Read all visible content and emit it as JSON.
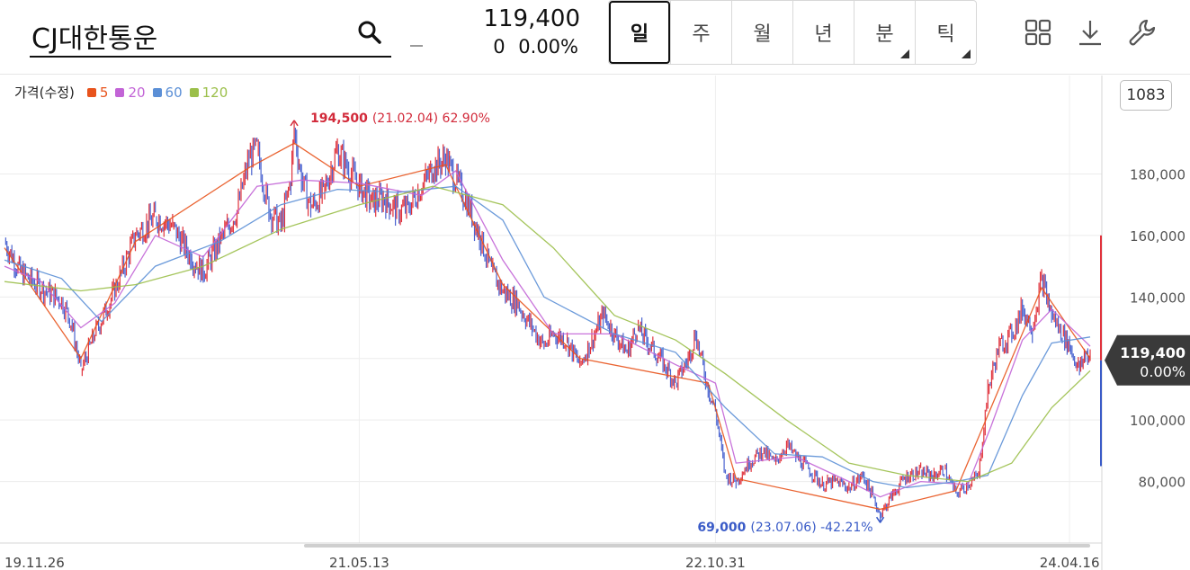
{
  "header": {
    "stock_name": "CJ대한통운",
    "price": "119,400",
    "change_value": "0",
    "change_percent": "0.00%"
  },
  "periods": [
    {
      "label": "일",
      "active": true,
      "has_submenu": false
    },
    {
      "label": "주",
      "active": false,
      "has_submenu": false
    },
    {
      "label": "월",
      "active": false,
      "has_submenu": false
    },
    {
      "label": "년",
      "active": false,
      "has_submenu": false
    },
    {
      "label": "분",
      "active": false,
      "has_submenu": true
    },
    {
      "label": "틱",
      "active": false,
      "has_submenu": true
    }
  ],
  "tools": [
    "grid-layout-icon",
    "download-icon",
    "wrench-icon"
  ],
  "legend": {
    "title": "가격(수정)",
    "items": [
      {
        "label": "5",
        "color": "#e8531c"
      },
      {
        "label": "20",
        "color": "#c264d6"
      },
      {
        "label": "60",
        "color": "#5b8fd6"
      },
      {
        "label": "120",
        "color": "#9bbf4a"
      }
    ]
  },
  "zoom_count": "1083",
  "chart_data": {
    "type": "line",
    "title": "",
    "x_labels": [
      "19.11.26",
      "21.05.13",
      "22.10.31",
      "24.04.16"
    ],
    "x_range": [
      "2019-11-26",
      "2024-05-17"
    ],
    "ylim": [
      60000,
      212000
    ],
    "y_ticks": [
      {
        "value": 80000,
        "label": "80,000"
      },
      {
        "value": 100000,
        "label": "100,000"
      },
      {
        "value": 120000,
        "label": "120,000"
      },
      {
        "value": 140000,
        "label": "140,000"
      },
      {
        "value": 160000,
        "label": "160,000"
      },
      {
        "value": 180000,
        "label": "180,000"
      }
    ],
    "price_series": {
      "name": "가격(수정)",
      "up_color": "#e0323c",
      "down_color": "#4a63d0",
      "points": [
        [
          "2019-11-26",
          158000
        ],
        [
          "2019-12-20",
          148000
        ],
        [
          "2020-01-20",
          143000
        ],
        [
          "2020-02-20",
          139000
        ],
        [
          "2020-03-05",
          132000
        ],
        [
          "2020-03-20",
          116000
        ],
        [
          "2020-04-10",
          128000
        ],
        [
          "2020-05-10",
          142000
        ],
        [
          "2020-06-10",
          160000
        ],
        [
          "2020-07-10",
          166000
        ],
        [
          "2020-08-05",
          163000
        ],
        [
          "2020-09-01",
          153000
        ],
        [
          "2020-09-20",
          148000
        ],
        [
          "2020-10-15",
          158000
        ],
        [
          "2020-11-10",
          168000
        ],
        [
          "2020-11-28",
          185000
        ],
        [
          "2020-12-10",
          188000
        ],
        [
          "2020-12-28",
          168000
        ],
        [
          "2021-01-15",
          163000
        ],
        [
          "2021-01-30",
          178000
        ],
        [
          "2021-02-04",
          194500
        ],
        [
          "2021-02-15",
          178000
        ],
        [
          "2021-03-01",
          169000
        ],
        [
          "2021-03-20",
          174000
        ],
        [
          "2021-04-10",
          188000
        ],
        [
          "2021-04-25",
          182000
        ],
        [
          "2021-05-13",
          176000
        ],
        [
          "2021-06-01",
          171000
        ],
        [
          "2021-06-20",
          172000
        ],
        [
          "2021-07-10",
          168000
        ],
        [
          "2021-07-25",
          169000
        ],
        [
          "2021-08-15",
          176000
        ],
        [
          "2021-09-01",
          182000
        ],
        [
          "2021-09-20",
          185000
        ],
        [
          "2021-10-05",
          178000
        ],
        [
          "2021-10-20",
          172000
        ],
        [
          "2021-11-10",
          160000
        ],
        [
          "2021-11-28",
          148000
        ],
        [
          "2021-12-15",
          142000
        ],
        [
          "2022-01-05",
          138000
        ],
        [
          "2022-01-28",
          130000
        ],
        [
          "2022-02-15",
          124000
        ],
        [
          "2022-03-01",
          128000
        ],
        [
          "2022-03-20",
          126000
        ],
        [
          "2022-04-10",
          118000
        ],
        [
          "2022-04-28",
          126000
        ],
        [
          "2022-05-15",
          134000
        ],
        [
          "2022-06-01",
          128000
        ],
        [
          "2022-06-20",
          122000
        ],
        [
          "2022-07-05",
          130000
        ],
        [
          "2022-07-25",
          124000
        ],
        [
          "2022-08-15",
          118000
        ],
        [
          "2022-09-01",
          112000
        ],
        [
          "2022-09-20",
          120000
        ],
        [
          "2022-10-01",
          128000
        ],
        [
          "2022-10-20",
          110000
        ],
        [
          "2022-10-31",
          103000
        ],
        [
          "2022-11-15",
          82000
        ],
        [
          "2022-12-01",
          80000
        ],
        [
          "2022-12-20",
          86000
        ],
        [
          "2023-01-10",
          90000
        ],
        [
          "2023-01-28",
          86000
        ],
        [
          "2023-02-15",
          92000
        ],
        [
          "2023-03-01",
          88000
        ],
        [
          "2023-03-20",
          84000
        ],
        [
          "2023-04-10",
          79000
        ],
        [
          "2023-05-01",
          80000
        ],
        [
          "2023-05-20",
          78000
        ],
        [
          "2023-06-10",
          82000
        ],
        [
          "2023-06-25",
          75000
        ],
        [
          "2023-07-06",
          69000
        ],
        [
          "2023-07-25",
          76000
        ],
        [
          "2023-08-15",
          82000
        ],
        [
          "2023-09-05",
          83000
        ],
        [
          "2023-09-25",
          82000
        ],
        [
          "2023-10-10",
          84000
        ],
        [
          "2023-10-28",
          76000
        ],
        [
          "2023-11-15",
          79000
        ],
        [
          "2023-12-01",
          82000
        ],
        [
          "2023-12-15",
          110000
        ],
        [
          "2024-01-01",
          124000
        ],
        [
          "2024-01-20",
          128000
        ],
        [
          "2024-02-05",
          136000
        ],
        [
          "2024-02-20",
          130000
        ],
        [
          "2024-03-05",
          146000
        ],
        [
          "2024-03-20",
          134000
        ],
        [
          "2024-04-05",
          128000
        ],
        [
          "2024-04-16",
          124000
        ],
        [
          "2024-05-01",
          116000
        ],
        [
          "2024-05-10",
          122000
        ],
        [
          "2024-05-17",
          119400
        ]
      ]
    },
    "moving_averages": [
      {
        "name": "5",
        "color": "#e8531c",
        "points": [
          [
            "2019-11-26",
            156000
          ],
          [
            "2020-03-20",
            120000
          ],
          [
            "2020-06-10",
            158000
          ],
          [
            "2020-11-28",
            182000
          ],
          [
            "2021-02-04",
            190000
          ],
          [
            "2021-05-13",
            176000
          ],
          [
            "2021-09-20",
            183000
          ],
          [
            "2021-12-15",
            144000
          ],
          [
            "2022-04-10",
            120000
          ],
          [
            "2022-10-20",
            112000
          ],
          [
            "2022-12-01",
            81000
          ],
          [
            "2023-07-06",
            71000
          ],
          [
            "2023-10-28",
            77000
          ],
          [
            "2024-03-05",
            143000
          ],
          [
            "2024-05-17",
            120000
          ]
        ]
      },
      {
        "name": "20",
        "color": "#c264d6",
        "points": [
          [
            "2019-11-26",
            150000
          ],
          [
            "2020-01-20",
            145000
          ],
          [
            "2020-03-20",
            130000
          ],
          [
            "2020-05-10",
            138000
          ],
          [
            "2020-07-10",
            160000
          ],
          [
            "2020-09-20",
            153000
          ],
          [
            "2020-12-10",
            176000
          ],
          [
            "2021-02-15",
            178000
          ],
          [
            "2021-05-13",
            177000
          ],
          [
            "2021-08-15",
            173000
          ],
          [
            "2021-10-05",
            181000
          ],
          [
            "2021-12-15",
            152000
          ],
          [
            "2022-03-01",
            128000
          ],
          [
            "2022-06-01",
            128000
          ],
          [
            "2022-09-01",
            118000
          ],
          [
            "2022-10-31",
            112000
          ],
          [
            "2022-12-01",
            86000
          ],
          [
            "2023-03-01",
            88000
          ],
          [
            "2023-05-20",
            80000
          ],
          [
            "2023-07-06",
            75000
          ],
          [
            "2023-09-05",
            80000
          ],
          [
            "2023-11-15",
            79000
          ],
          [
            "2023-12-20",
            98000
          ],
          [
            "2024-02-05",
            126000
          ],
          [
            "2024-03-20",
            136000
          ],
          [
            "2024-05-17",
            124000
          ]
        ]
      },
      {
        "name": "60",
        "color": "#5b8fd6",
        "points": [
          [
            "2019-11-26",
            152000
          ],
          [
            "2020-02-20",
            146000
          ],
          [
            "2020-04-20",
            132000
          ],
          [
            "2020-07-10",
            150000
          ],
          [
            "2020-10-15",
            158000
          ],
          [
            "2021-01-15",
            170000
          ],
          [
            "2021-04-10",
            175000
          ],
          [
            "2021-07-10",
            174000
          ],
          [
            "2021-10-05",
            176000
          ],
          [
            "2021-12-15",
            165000
          ],
          [
            "2022-02-15",
            140000
          ],
          [
            "2022-06-01",
            128000
          ],
          [
            "2022-09-01",
            122000
          ],
          [
            "2022-11-15",
            104000
          ],
          [
            "2023-01-28",
            89000
          ],
          [
            "2023-04-10",
            88000
          ],
          [
            "2023-06-25",
            80000
          ],
          [
            "2023-08-15",
            78000
          ],
          [
            "2023-10-28",
            80000
          ],
          [
            "2023-12-15",
            82000
          ],
          [
            "2024-02-05",
            108000
          ],
          [
            "2024-03-20",
            125000
          ],
          [
            "2024-05-17",
            127000
          ]
        ]
      },
      {
        "name": "120",
        "color": "#9bbf4a",
        "points": [
          [
            "2019-11-26",
            145000
          ],
          [
            "2020-03-20",
            142000
          ],
          [
            "2020-06-10",
            144000
          ],
          [
            "2020-09-20",
            150000
          ],
          [
            "2021-01-15",
            162000
          ],
          [
            "2021-05-13",
            170000
          ],
          [
            "2021-09-01",
            176000
          ],
          [
            "2021-12-15",
            170000
          ],
          [
            "2022-03-01",
            156000
          ],
          [
            "2022-06-01",
            134000
          ],
          [
            "2022-09-01",
            126000
          ],
          [
            "2022-11-15",
            115000
          ],
          [
            "2023-02-15",
            100000
          ],
          [
            "2023-05-20",
            86000
          ],
          [
            "2023-08-15",
            82000
          ],
          [
            "2023-11-15",
            80000
          ],
          [
            "2024-01-20",
            86000
          ],
          [
            "2024-03-20",
            104000
          ],
          [
            "2024-05-17",
            116000
          ]
        ]
      }
    ],
    "annotations": [
      {
        "kind": "high",
        "value": "194,500",
        "detail": "(21.02.04) 62.90%",
        "date": "2021-02-04",
        "price": 194500,
        "color": "#d22a3a"
      },
      {
        "kind": "low",
        "value": "69,000",
        "detail": "(23.07.06) -42.21%",
        "date": "2023-07-06",
        "price": 69000,
        "color": "#3a5bc7"
      }
    ],
    "current_price_label": {
      "price": "119,400",
      "percent": "0.00%",
      "value": 119400
    }
  }
}
